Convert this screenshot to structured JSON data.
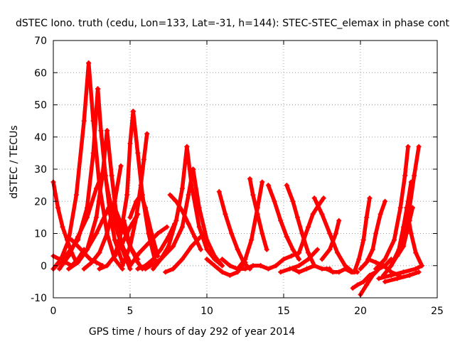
{
  "chart_data": {
    "type": "scatter",
    "title": "dSTEC Iono. truth (cedu, Lon=133, Lat=-31, h=144): STEC-STEC_elemax in phase cont",
    "xlabel": "GPS time / hours of day 292 of year 2014",
    "ylabel": "dSTEC  / TECUs",
    "xlim": [
      0,
      25
    ],
    "ylim": [
      -10,
      70
    ],
    "xticks": [
      "0",
      "5",
      "10",
      "15",
      "20",
      "25"
    ],
    "yticks": [
      "-10",
      "0",
      "10",
      "20",
      "30",
      "40",
      "50",
      "60",
      "70"
    ],
    "grid": true,
    "color": "#ff0000",
    "marker": "plus",
    "series": [
      {
        "x": [
          0.0,
          0.5,
          1.0,
          1.5,
          2.0,
          2.3
        ],
        "y": [
          -1,
          2,
          8,
          22,
          45,
          63
        ]
      },
      {
        "x": [
          2.3,
          2.6,
          3.0,
          3.5,
          4.0,
          4.5
        ],
        "y": [
          63,
          45,
          25,
          10,
          2,
          -1
        ]
      },
      {
        "x": [
          0.0,
          0.3,
          0.6,
          0.9,
          1.2,
          1.5
        ],
        "y": [
          26,
          18,
          12,
          8,
          4,
          1
        ]
      },
      {
        "x": [
          0.0,
          0.8,
          1.6,
          2.2,
          2.6,
          2.9
        ],
        "y": [
          -1,
          3,
          8,
          18,
          35,
          55
        ]
      },
      {
        "x": [
          2.9,
          3.1,
          3.4,
          3.7,
          4.0,
          4.5
        ],
        "y": [
          55,
          42,
          28,
          16,
          8,
          1
        ]
      },
      {
        "x": [
          0.0,
          0.4,
          0.8,
          1.2,
          1.6,
          2.0
        ],
        "y": [
          3,
          2,
          1,
          0,
          2,
          5
        ]
      },
      {
        "x": [
          0.4,
          1.0,
          1.6,
          2.2,
          2.8,
          3.3
        ],
        "y": [
          -1,
          3,
          9,
          15,
          24,
          30
        ]
      },
      {
        "x": [
          3.3,
          3.6,
          3.9,
          4.2,
          4.6,
          5.0
        ],
        "y": [
          30,
          22,
          16,
          10,
          5,
          1
        ]
      },
      {
        "x": [
          1.0,
          1.6,
          2.2,
          2.8,
          3.2,
          3.5
        ],
        "y": [
          -1,
          1,
          5,
          15,
          28,
          42
        ]
      },
      {
        "x": [
          3.5,
          3.8,
          4.1,
          4.5,
          5.0
        ],
        "y": [
          42,
          28,
          16,
          5,
          -1
        ]
      },
      {
        "x": [
          1.2,
          1.6,
          2.0,
          2.4,
          2.8,
          3.2
        ],
        "y": [
          8,
          6,
          4,
          2,
          1,
          0
        ]
      },
      {
        "x": [
          2.0,
          2.5,
          3.0,
          3.5,
          4.0,
          4.4
        ],
        "y": [
          -1,
          1,
          4,
          10,
          20,
          31
        ]
      },
      {
        "x": [
          1.6,
          2.2,
          2.8,
          3.2,
          3.6,
          4.0
        ],
        "y": [
          1,
          5,
          10,
          14,
          18,
          18
        ]
      },
      {
        "x": [
          4.0,
          4.5,
          5.0,
          5.5
        ],
        "y": [
          18,
          12,
          6,
          2
        ]
      },
      {
        "x": [
          3.0,
          3.5,
          4.0,
          4.5,
          5.0,
          5.5
        ],
        "y": [
          -1,
          0,
          3,
          7,
          12,
          16
        ]
      },
      {
        "x": [
          4.6,
          4.8,
          5.0,
          5.2,
          5.5,
          5.8
        ],
        "y": [
          14,
          10,
          6,
          4,
          1,
          -1
        ]
      },
      {
        "x": [
          4.0,
          4.4,
          4.8,
          5.0,
          5.2
        ],
        "y": [
          3,
          10,
          22,
          38,
          48
        ]
      },
      {
        "x": [
          5.2,
          5.5,
          5.8,
          6.2,
          6.6
        ],
        "y": [
          48,
          35,
          22,
          10,
          2
        ]
      },
      {
        "x": [
          4.5,
          5.0,
          5.4,
          5.7,
          5.9,
          6.1
        ],
        "y": [
          0,
          6,
          15,
          25,
          33,
          41
        ]
      },
      {
        "x": [
          5.0,
          5.4,
          5.7,
          6.0,
          6.4,
          6.8
        ],
        "y": [
          15,
          20,
          22,
          18,
          10,
          3
        ]
      },
      {
        "x": [
          5.5,
          6.0,
          6.5,
          7.0,
          7.5,
          7.9
        ],
        "y": [
          -1,
          0,
          2,
          5,
          9,
          13
        ]
      },
      {
        "x": [
          5.0,
          5.6,
          6.2,
          6.8,
          7.4
        ],
        "y": [
          0,
          4,
          7,
          10,
          12
        ]
      },
      {
        "x": [
          6.5,
          7.0,
          7.5,
          8.0,
          8.4,
          8.7
        ],
        "y": [
          -1,
          2,
          6,
          14,
          24,
          37
        ]
      },
      {
        "x": [
          8.7,
          9.0,
          9.5,
          10.0,
          10.5,
          11.0
        ],
        "y": [
          37,
          25,
          12,
          5,
          2,
          0
        ]
      },
      {
        "x": [
          7.6,
          8.0,
          8.4,
          8.8,
          9.2,
          9.6
        ],
        "y": [
          22,
          20,
          17,
          13,
          9,
          5
        ]
      },
      {
        "x": [
          6.0,
          7.0,
          7.8,
          8.4,
          8.8,
          9.1
        ],
        "y": [
          -1,
          2,
          6,
          12,
          22,
          30
        ]
      },
      {
        "x": [
          9.1,
          9.5,
          10.0,
          10.5,
          11.0
        ],
        "y": [
          30,
          18,
          8,
          3,
          0
        ]
      },
      {
        "x": [
          7.3,
          7.8,
          8.4,
          9.0,
          9.6
        ],
        "y": [
          -2,
          -1,
          2,
          6,
          9
        ]
      },
      {
        "x": [
          10.0,
          10.5,
          11.0,
          11.5,
          12.0,
          12.5
        ],
        "y": [
          2,
          0,
          -2,
          -3,
          -2,
          1
        ]
      },
      {
        "x": [
          10.8,
          11.2,
          11.6,
          12.0,
          12.4,
          12.8
        ],
        "y": [
          23,
          16,
          10,
          5,
          1,
          -1
        ]
      },
      {
        "x": [
          11.0,
          11.5,
          12.0,
          12.5,
          13.0,
          13.5
        ],
        "y": [
          2,
          0,
          -1,
          -1,
          0,
          0
        ]
      },
      {
        "x": [
          12.0,
          12.5,
          12.9,
          13.3,
          13.6
        ],
        "y": [
          -1,
          2,
          8,
          18,
          26
        ]
      },
      {
        "x": [
          12.8,
          13.0,
          13.3,
          13.6,
          13.9
        ],
        "y": [
          27,
          22,
          16,
          10,
          5
        ]
      },
      {
        "x": [
          13.5,
          14.0,
          14.5,
          15.0,
          15.5,
          16.0
        ],
        "y": [
          0,
          -1,
          0,
          2,
          3,
          4
        ]
      },
      {
        "x": [
          14.0,
          14.4,
          14.8,
          15.2,
          15.6,
          16.0
        ],
        "y": [
          25,
          20,
          14,
          9,
          5,
          2
        ]
      },
      {
        "x": [
          15.2,
          15.6,
          15.9,
          16.2,
          16.6,
          17.0
        ],
        "y": [
          25,
          20,
          15,
          10,
          4,
          0
        ]
      },
      {
        "x": [
          16.0,
          16.3,
          16.6,
          16.9,
          17.3,
          17.6
        ],
        "y": [
          4,
          8,
          12,
          16,
          19,
          21
        ]
      },
      {
        "x": [
          15.6,
          16.0,
          16.5,
          17.0,
          17.5,
          18.0
        ],
        "y": [
          -1,
          -2,
          -1,
          0,
          -1,
          -1
        ]
      },
      {
        "x": [
          14.8,
          15.4,
          16.0,
          16.6,
          17.2
        ],
        "y": [
          -2,
          -1,
          0,
          2,
          5
        ]
      },
      {
        "x": [
          17.0,
          17.5,
          18.0,
          18.5,
          19.0,
          19.5
        ],
        "y": [
          21,
          16,
          10,
          4,
          0,
          -2
        ]
      },
      {
        "x": [
          17.5,
          18.0,
          18.4,
          18.6
        ],
        "y": [
          2,
          5,
          10,
          14
        ]
      },
      {
        "x": [
          17.8,
          18.2,
          18.6,
          19.0,
          19.4,
          19.8
        ],
        "y": [
          -1,
          -2,
          -2,
          -1,
          -2,
          -2
        ]
      },
      {
        "x": [
          19.5,
          19.8,
          20.2,
          20.6,
          21.0
        ],
        "y": [
          -7,
          -6,
          -5,
          -3,
          -2
        ]
      },
      {
        "x": [
          19.6,
          19.9,
          20.2,
          20.4,
          20.6
        ],
        "y": [
          -2,
          2,
          8,
          15,
          21
        ]
      },
      {
        "x": [
          20.0,
          20.4,
          20.8,
          21.0,
          21.3,
          21.6
        ],
        "y": [
          -1,
          1,
          5,
          10,
          16,
          20
        ]
      },
      {
        "x": [
          20.0,
          20.4,
          20.8,
          21.2,
          21.6,
          22.0
        ],
        "y": [
          -9,
          -6,
          -3,
          -1,
          0,
          2
        ]
      },
      {
        "x": [
          20.5,
          21.0,
          21.5,
          22.0,
          22.5
        ],
        "y": [
          2,
          1,
          0,
          -2,
          -3
        ]
      },
      {
        "x": [
          21.0,
          21.6,
          22.2,
          22.6,
          22.9,
          23.1
        ],
        "y": [
          -1,
          2,
          8,
          18,
          28,
          37
        ]
      },
      {
        "x": [
          21.5,
          22.0,
          22.5,
          22.8,
          23.1,
          23.3
        ],
        "y": [
          -3,
          0,
          5,
          12,
          20,
          26
        ]
      },
      {
        "x": [
          22.0,
          22.5,
          22.9,
          23.2,
          23.5,
          23.8
        ],
        "y": [
          0,
          4,
          10,
          18,
          28,
          37
        ]
      },
      {
        "x": [
          22.4,
          22.8,
          23.0,
          23.2,
          23.4
        ],
        "y": [
          3,
          6,
          10,
          14,
          18
        ]
      },
      {
        "x": [
          23.0,
          23.3,
          23.6,
          24.0
        ],
        "y": [
          18,
          10,
          4,
          0
        ]
      },
      {
        "x": [
          21.2,
          22.0,
          22.8,
          23.6,
          24.0
        ],
        "y": [
          -4,
          -3,
          -2,
          -1,
          0
        ]
      },
      {
        "x": [
          21.6,
          22.4,
          23.2,
          23.8
        ],
        "y": [
          -5,
          -4,
          -3,
          -2
        ]
      }
    ]
  }
}
